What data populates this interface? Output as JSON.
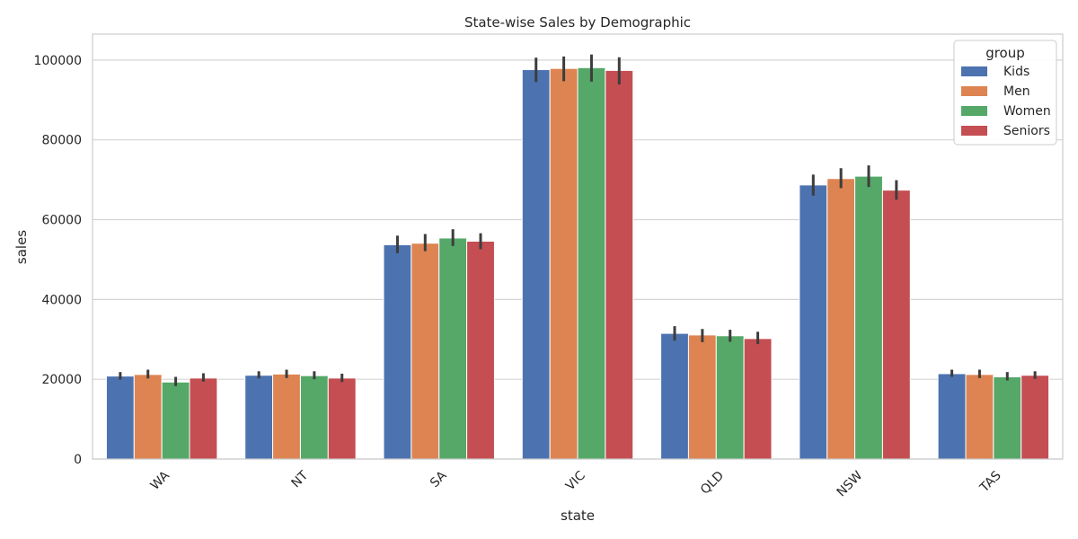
{
  "chart_data": {
    "type": "bar",
    "title": "State-wise Sales by Demographic",
    "xlabel": "state",
    "ylabel": "sales",
    "categories": [
      "WA",
      "NT",
      "SA",
      "VIC",
      "QLD",
      "NSW",
      "TAS"
    ],
    "ylim": [
      0,
      106500
    ],
    "yticks": [
      0,
      20000,
      40000,
      60000,
      80000,
      100000
    ],
    "grid": true,
    "legend": {
      "title": "group",
      "placement": "top-right"
    },
    "series": [
      {
        "name": "Kids",
        "color": "#4c72b0",
        "values": [
          20800,
          21000,
          53700,
          97600,
          31500,
          68700,
          21400
        ],
        "err_low": [
          19900,
          20200,
          51600,
          94500,
          29700,
          66000,
          20600
        ],
        "err_high": [
          21800,
          22000,
          56000,
          100600,
          33300,
          71300,
          22400
        ]
      },
      {
        "name": "Men",
        "color": "#dd8452",
        "values": [
          21200,
          21300,
          54100,
          97900,
          31100,
          70300,
          21200
        ],
        "err_low": [
          20200,
          20300,
          52100,
          94700,
          29300,
          67900,
          20300
        ],
        "err_high": [
          22400,
          22400,
          56400,
          100900,
          32600,
          72900,
          22400
        ]
      },
      {
        "name": "Women",
        "color": "#55a868",
        "values": [
          19300,
          20900,
          55400,
          98100,
          30900,
          70900,
          20600
        ],
        "err_low": [
          18300,
          20000,
          53400,
          94600,
          29400,
          68200,
          19700
        ],
        "err_high": [
          20600,
          22000,
          57600,
          101400,
          32400,
          73600,
          21800
        ]
      },
      {
        "name": "Seniors",
        "color": "#c44e52",
        "values": [
          20300,
          20300,
          54600,
          97400,
          30200,
          67400,
          21000
        ],
        "err_low": [
          19400,
          19300,
          52600,
          93900,
          28800,
          65000,
          20100
        ],
        "err_high": [
          21500,
          21400,
          56600,
          100700,
          31900,
          69900,
          22000
        ]
      }
    ]
  }
}
